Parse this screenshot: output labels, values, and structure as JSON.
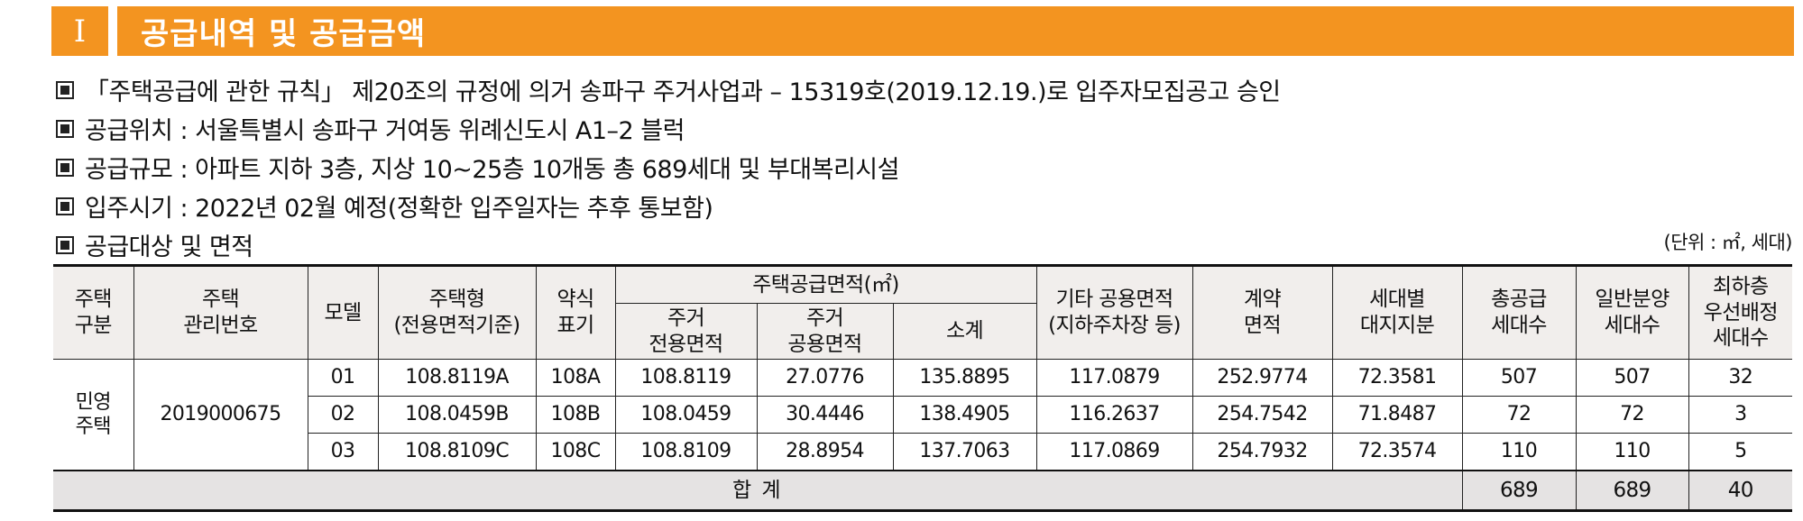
{
  "header": {
    "section_num": "I",
    "title": "공급내역 및 공급금액"
  },
  "bullets": [
    "「주택공급에 관한 규칙」 제20조의 규정에 의거 송파구 주거사업과 – 15319호(2019.12.19.)로 입주자모집공고 승인",
    "공급위치 : 서울특별시 송파구 거여동 위례신도시 A1–2 블럭",
    "공급규모 : 아파트 지하 3층, 지상 10~25층 10개동 총 689세대 및 부대복리시설",
    "입주시기 : 2022년 02월 예정(정확한 입주일자는 추후 통보함)",
    "공급대상 및 면적"
  ],
  "unit_note": "(단위 : ㎡, 세대)",
  "table": {
    "headers": {
      "type": "주택\n구분",
      "mgmt_no": "주택\n관리번호",
      "model": "모델",
      "house_type": "주택형\n(전용면적기준)",
      "abbr": "약식\n표기",
      "supply_area": "주택공급면적(㎡)",
      "exclusive": "주거\n전용면적",
      "common": "주거\n공용면적",
      "subtotal": "소계",
      "other_common": "기타 공용면적\n(지하주차장 등)",
      "contract": "계약\n면적",
      "land": "세대별\n대지지분",
      "total_units": "총공급\n세대수",
      "general_units": "일반분양\n세대수",
      "lowest_floor": "최하층\n우선배정\n세대수"
    },
    "group_type": "민영\n주택",
    "group_mgmt_no": "2019000675",
    "rows": [
      {
        "model": "01",
        "house_type": "108.8119A",
        "abbr": "108A",
        "exclusive": "108.8119",
        "common": "27.0776",
        "subtotal": "135.8895",
        "other_common": "117.0879",
        "contract": "252.9774",
        "land": "72.3581",
        "total": "507",
        "general": "507",
        "lowest": "32"
      },
      {
        "model": "02",
        "house_type": "108.0459B",
        "abbr": "108B",
        "exclusive": "108.0459",
        "common": "30.4446",
        "subtotal": "138.4905",
        "other_common": "116.2637",
        "contract": "254.7542",
        "land": "71.8487",
        "total": "72",
        "general": "72",
        "lowest": "3"
      },
      {
        "model": "03",
        "house_type": "108.8109C",
        "abbr": "108C",
        "exclusive": "108.8109",
        "common": "28.8954",
        "subtotal": "137.7063",
        "other_common": "117.0869",
        "contract": "254.7932",
        "land": "72.3574",
        "total": "110",
        "general": "110",
        "lowest": "5"
      }
    ],
    "totals": {
      "label": "합 계",
      "total": "689",
      "general": "689",
      "lowest": "40"
    }
  }
}
